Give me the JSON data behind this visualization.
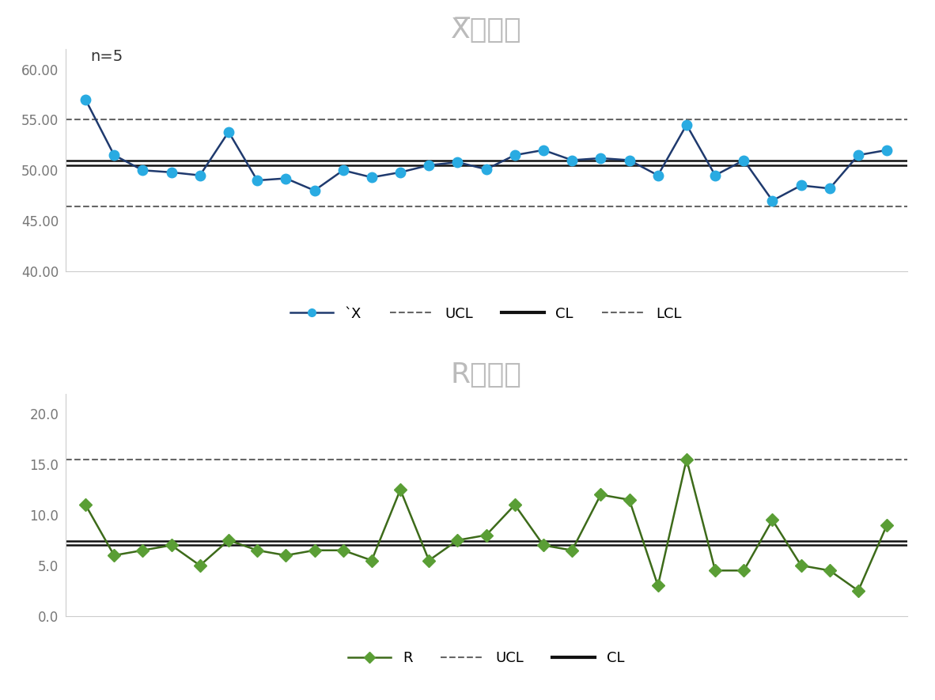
{
  "xbar_data": [
    57.0,
    51.5,
    50.0,
    49.8,
    49.5,
    53.8,
    49.0,
    49.2,
    48.0,
    50.0,
    49.3,
    49.8,
    50.5,
    50.8,
    50.1,
    51.5,
    52.0,
    51.0,
    51.2,
    51.0,
    49.5,
    54.5,
    49.5,
    51.0,
    47.0,
    48.5,
    48.2,
    51.5,
    52.0
  ],
  "r_data": [
    11.0,
    6.0,
    6.5,
    7.0,
    5.0,
    7.5,
    6.5,
    6.0,
    6.5,
    6.5,
    5.5,
    12.5,
    5.5,
    7.5,
    8.0,
    11.0,
    7.0,
    6.5,
    12.0,
    11.5,
    3.0,
    15.5,
    4.5,
    4.5,
    9.5,
    5.0,
    4.5,
    2.5,
    9.0
  ],
  "xbar_UCL": 55.0,
  "xbar_CL": 50.73,
  "xbar_LCL": 46.4,
  "xbar_ylim": [
    40.0,
    62.0
  ],
  "xbar_yticks": [
    40.0,
    45.0,
    50.0,
    55.0,
    60.0
  ],
  "r_UCL": 15.5,
  "r_CL": 7.2,
  "r_ylim": [
    0.0,
    22.0
  ],
  "r_yticks": [
    0.0,
    5.0,
    10.0,
    15.0,
    20.0
  ],
  "xbar_title": "X̅管理図",
  "r_title": "R管理図",
  "n_label": "n=5",
  "xbar_line_color": "#1f3a6e",
  "xbar_marker_color": "#29ABE2",
  "r_line_color": "#3d6b1a",
  "r_marker_color": "#5a9e35",
  "ucl_color": "#666666",
  "cl_color": "#111111",
  "lcl_color": "#666666",
  "bg_color": "#ffffff",
  "title_color": "#bbbbbb",
  "title_fontsize": 26,
  "legend_fontsize": 13,
  "tick_label_color": "#777777",
  "tick_fontsize": 12
}
